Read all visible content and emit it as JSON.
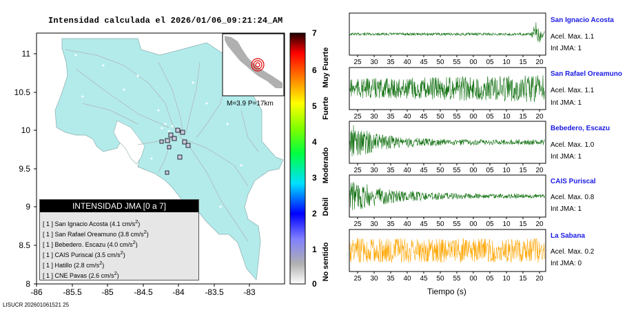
{
  "map": {
    "title": "Intensidad calculada el 2026/01/06_09:21:24_AM",
    "footer_id": "LISUCR 202601061521 25",
    "xticks": [
      "-86",
      "-85.5",
      "-85",
      "-84.5",
      "-84",
      "-83.5",
      "-83"
    ],
    "yticks": [
      "11",
      "10.5",
      "10",
      "9.5",
      "9",
      "8.5",
      "8"
    ],
    "inset_label": "M=3.9 P=17km",
    "colorbar": {
      "ticks": [
        "0",
        "1",
        "2",
        "3",
        "4",
        "5",
        "6",
        "7"
      ],
      "labels": [
        "No sentido",
        "Debil",
        "Moderado",
        "Fuerte",
        "Muy Fuerte"
      ]
    },
    "legend": {
      "title": "INTENSIDAD JMA [0 a 7]",
      "rows": [
        {
          "jma": "[ 1 ]",
          "name": "San Ignacio Acosta",
          "value": "(4.1 cm/s",
          "sup": "2",
          "close": ")"
        },
        {
          "jma": "[ 1 ]",
          "name": "San Rafael Oreamuno",
          "value": "(3.8 cm/s",
          "sup": "2",
          "close": ")"
        },
        {
          "jma": "[ 1 ]",
          "name": "Bebedero. Escazu",
          "value": "(4.0 cm/s",
          "sup": "2",
          "close": ")"
        },
        {
          "jma": "[ 1 ]",
          "name": "CAIS Puriscal",
          "value": "(3.5 cm/s",
          "sup": "2",
          "close": ")"
        },
        {
          "jma": "[ 1 ]",
          "name": "Hatillo",
          "value": "(2.8 cm/s",
          "sup": "2",
          "close": ")"
        },
        {
          "jma": "[ 1 ]",
          "name": "CNE Pavas",
          "value": "(2.6 cm/s",
          "sup": "2",
          "close": ")"
        }
      ]
    }
  },
  "stations": [
    {
      "name": "San Ignacio Acosta",
      "acc": "Acel. Max. 1.1",
      "jma": "Int JMA: 1"
    },
    {
      "name": "San Rafael Oreamuno",
      "acc": "Acel. Max. 1.1",
      "jma": "Int JMA: 1"
    },
    {
      "name": "Bebedero, Escazu",
      "acc": "Acel. Max. 1.0",
      "jma": "Int JMA: 1"
    },
    {
      "name": "CAIS Puriscal",
      "acc": "Acel. Max. 0.8",
      "jma": "Int JMA: 1"
    },
    {
      "name": "La Sabana",
      "acc": "Acel. Max. 0.2",
      "jma": "Int JMA: 0"
    }
  ],
  "waveform_colors": [
    "#0d6e0d",
    "#0d6e0d",
    "#0d6e0d",
    "#0d6e0d",
    "#ffa500"
  ],
  "time_ticks_a": [
    "25",
    "30",
    "35",
    "40",
    "45",
    "50",
    "55",
    "00",
    "05",
    "10",
    "15",
    "20"
  ],
  "time_ticks_b": [
    "25",
    "30",
    "35",
    "40",
    "45",
    "50",
    "55",
    "00",
    "05",
    "10",
    "15",
    "20"
  ],
  "time_ticks_c": [
    "25",
    "30",
    "35",
    "40",
    "45",
    "50",
    "55",
    "00",
    "05",
    "10",
    "15",
    "20"
  ],
  "time_ticks_d": [
    "25",
    "30",
    "35",
    "40",
    "45",
    "50",
    "55",
    "00",
    "05",
    "10",
    "15",
    "20"
  ],
  "time_ticks_e": [
    "25",
    "30",
    "35",
    "40",
    "45",
    "50",
    "55",
    "00",
    "05",
    "10",
    "15",
    "20"
  ],
  "xaxis_label": "Tiempo (s)",
  "chart_data": [
    {
      "type": "heatmap",
      "title": "Intensidad calculada el 2026/01/06_09:21:24_AM",
      "xlim": [
        -86,
        -82.5
      ],
      "ylim": [
        8,
        11.3
      ],
      "xticks": [
        -86,
        -85.5,
        -85,
        -84.5,
        -84,
        -83.5,
        -83
      ],
      "yticks": [
        8,
        8.5,
        9,
        9.5,
        10,
        10.5,
        11
      ],
      "colorbar_range": [
        0,
        7
      ],
      "colorbar_labels": [
        "No sentido",
        "Debil",
        "Moderado",
        "Fuerte",
        "Muy Fuerte"
      ],
      "epicenter_label": "M=3.9 P=17km"
    },
    {
      "type": "line",
      "series": [
        {
          "name": "San Ignacio Acosta",
          "max_accel": 1.1,
          "jma": 1
        },
        {
          "name": "San Rafael Oreamuno",
          "max_accel": 1.1,
          "jma": 1
        },
        {
          "name": "Bebedero, Escazu",
          "max_accel": 1.0,
          "jma": 1
        },
        {
          "name": "CAIS Puriscal",
          "max_accel": 0.8,
          "jma": 1
        },
        {
          "name": "La Sabana",
          "max_accel": 0.2,
          "jma": 0
        }
      ],
      "xlabel": "Tiempo (s)",
      "x_ticks": [
        "25",
        "30",
        "35",
        "40",
        "45",
        "50",
        "55",
        "00",
        "05",
        "10",
        "15",
        "20"
      ]
    }
  ]
}
